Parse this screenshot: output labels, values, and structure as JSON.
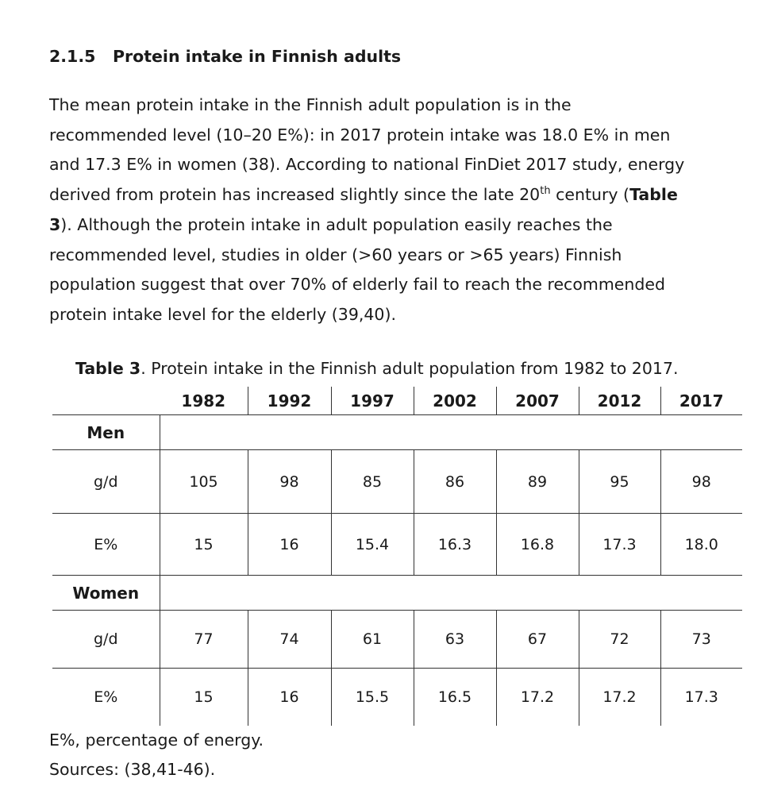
{
  "heading": {
    "number": "2.1.5",
    "title": "Protein intake in Finnish adults"
  },
  "paragraph": {
    "runs": [
      "The mean protein intake in the Finnish adult population is in the",
      "recommended level (10–20 E%): in 2017 protein intake was 18.0 E% in men",
      "and 17.3 E% in women (38). According to national FinDiet 2017 study, energy",
      "derived from protein has increased slightly since the late 20",
      "th",
      " century (",
      "Table",
      "3",
      "). Although the protein intake in adult population easily reaches the",
      "recommended level, studies in older (>60 years or >65 years) Finnish",
      "population suggest that over 70% of elderly fail to reach the recommended",
      "protein intake level for the elderly (39,40)."
    ]
  },
  "caption": {
    "label": "Table 3",
    "text": ". Protein intake in the Finnish adult population from 1982 to 2017."
  },
  "table": {
    "columns": [
      "1982",
      "1992",
      "1997",
      "2002",
      "2007",
      "2012",
      "2017"
    ],
    "groups": [
      {
        "label": "Men",
        "rows": [
          {
            "label": "g/d",
            "values": [
              "105",
              "98",
              "85",
              "86",
              "89",
              "95",
              "98"
            ]
          },
          {
            "label": "E%",
            "values": [
              "15",
              "16",
              "15.4",
              "16.3",
              "16.8",
              "17.3",
              "18.0"
            ]
          }
        ]
      },
      {
        "label": "Women",
        "rows": [
          {
            "label": "g/d",
            "values": [
              "77",
              "74",
              "61",
              "63",
              "67",
              "72",
              "73"
            ]
          },
          {
            "label": "E%",
            "values": [
              "15",
              "16",
              "15.5",
              "16.5",
              "17.2",
              "17.2",
              "17.3"
            ]
          }
        ]
      }
    ]
  },
  "notes": [
    "E%, percentage of energy.",
    "Sources: (38,41-46)."
  ]
}
